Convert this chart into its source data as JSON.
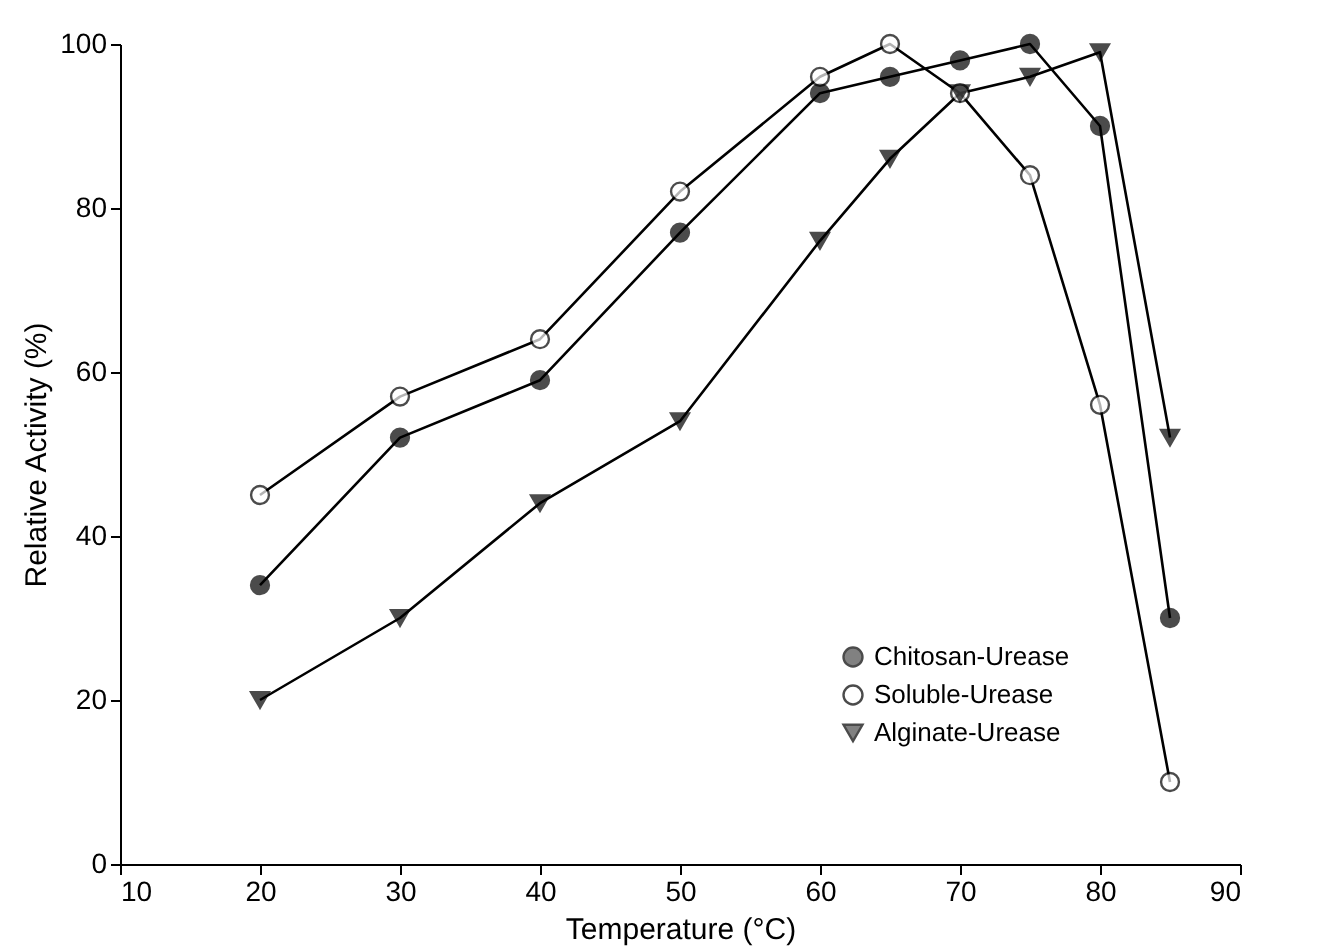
{
  "chart_data": {
    "type": "line",
    "xlabel": "Temperature (°C)",
    "ylabel": "Relative Activity (%)",
    "x": [
      20,
      30,
      40,
      50,
      60,
      65,
      70,
      75,
      80,
      85
    ],
    "series": [
      {
        "name": "Chitosan-Urease",
        "color": "#000000",
        "marker": "circle",
        "values": [
          34,
          52,
          59,
          77,
          94,
          96,
          98,
          100,
          90,
          30
        ]
      },
      {
        "name": "Soluble-Urease",
        "color": "#000000",
        "marker": "open_circle",
        "values": [
          45,
          57,
          64,
          82,
          96,
          100,
          94,
          84,
          56,
          10
        ]
      },
      {
        "name": "Alginate-Urease",
        "color": "#000000",
        "marker": "triangle",
        "values": [
          20,
          30,
          44,
          54,
          76,
          86,
          94,
          96,
          99,
          52
        ]
      }
    ],
    "xlim": [
      10,
      90
    ],
    "xticks": [
      10,
      20,
      30,
      40,
      50,
      60,
      70,
      80,
      90
    ],
    "ylim": [
      0,
      100
    ],
    "yticks": [
      0,
      20,
      40,
      60,
      80,
      100
    ],
    "grid": false,
    "legend": "bottom right",
    "line_style": "solid"
  }
}
